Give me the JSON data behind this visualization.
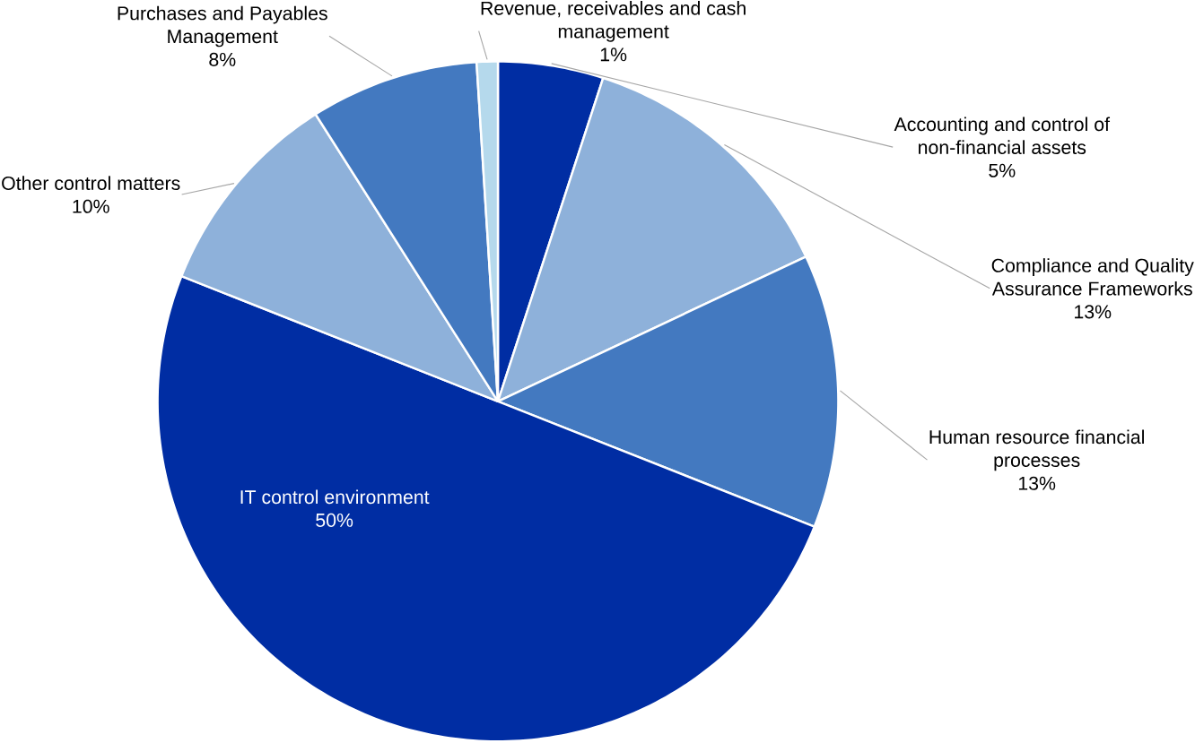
{
  "chart_data": {
    "type": "pie",
    "categories": [
      "Accounting and control of non-financial assets",
      "Compliance and Quality Assurance Frameworks",
      "Human resource financial processes",
      "IT control environment",
      "Other control matters",
      "Purchases and Payables Management",
      "Revenue, receivables and cash management"
    ],
    "values": [
      5,
      13,
      13,
      50,
      10,
      8,
      1
    ],
    "value_labels": [
      "5%",
      "13%",
      "13%",
      "50%",
      "10%",
      "8%",
      "1%"
    ],
    "colors": [
      "#002da3",
      "#8eb1da",
      "#4379c0",
      "#002da3",
      "#8eb1da",
      "#4379c0",
      "#b5d9ec"
    ]
  }
}
